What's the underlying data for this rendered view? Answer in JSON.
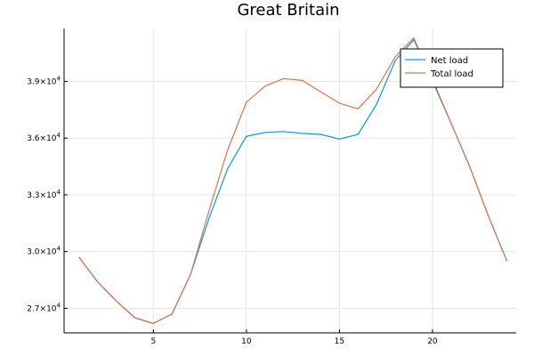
{
  "chart_data": {
    "type": "line",
    "title": "Great Britain",
    "xlabel": "",
    "ylabel": "",
    "grid": true,
    "legend_position": "top-right",
    "xlim": [
      0.2,
      24.5
    ],
    "ylim": [
      25700,
      41800
    ],
    "x_ticks": [
      5,
      10,
      15,
      20
    ],
    "x_tick_labels": [
      "5",
      "10",
      "15",
      "20"
    ],
    "y_ticks": [
      27000,
      30000,
      33000,
      36000,
      39000
    ],
    "y_tick_labels": [
      {
        "mantissa": "2.7×10",
        "exp": "4"
      },
      {
        "mantissa": "3.0×10",
        "exp": "4"
      },
      {
        "mantissa": "3.3×10",
        "exp": "4"
      },
      {
        "mantissa": "3.6×10",
        "exp": "4"
      },
      {
        "mantissa": "3.9×10",
        "exp": "4"
      }
    ],
    "x": [
      1,
      2,
      3,
      4,
      5,
      6,
      7,
      8,
      9,
      10,
      11,
      12,
      13,
      14,
      15,
      16,
      17,
      18,
      19,
      20,
      21,
      22,
      23,
      24
    ],
    "series": [
      {
        "name": "Net load",
        "color": "#009AF9",
        "values": [
          29700,
          28400,
          27400,
          26500,
          26200,
          26700,
          28800,
          31800,
          34400,
          36100,
          36300,
          36350,
          36250,
          36200,
          35950,
          36200,
          37800,
          40100,
          41200,
          39100,
          36800,
          34500,
          31900,
          29500
        ]
      },
      {
        "name": "Total load",
        "color": "#E26F46",
        "values": [
          29700,
          28400,
          27400,
          26500,
          26200,
          26700,
          28800,
          32200,
          35400,
          37900,
          38750,
          39150,
          39050,
          38450,
          37850,
          37550,
          38600,
          40300,
          41300,
          39000,
          36800,
          34500,
          31900,
          29500
        ]
      }
    ]
  }
}
